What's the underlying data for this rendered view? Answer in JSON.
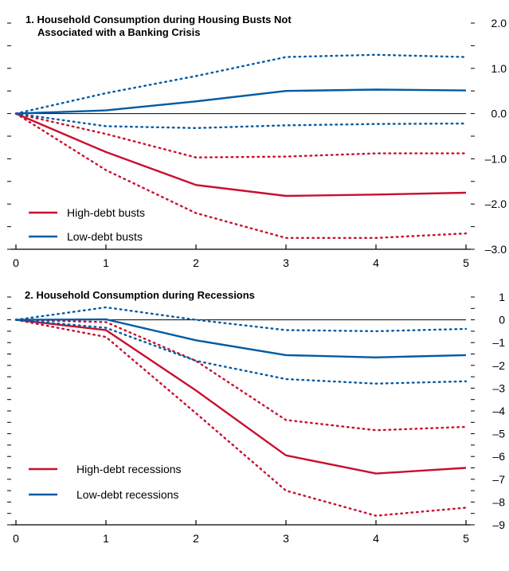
{
  "colors": {
    "high": "#c8102e",
    "low": "#005ba6",
    "axis": "#000000",
    "zero": "#000000"
  },
  "chart_data": [
    {
      "type": "line",
      "title": "1. Household Consumption during Housing Busts Not",
      "subtitle": "Associated with a Banking Crisis",
      "x": [
        0,
        1,
        2,
        3,
        4,
        5
      ],
      "x_tick_labels": [
        "0",
        "1",
        "2",
        "3",
        "4",
        "5"
      ],
      "ylim": [
        -3.0,
        2.0
      ],
      "y_tick_labels": [
        "2.0",
        "1.0",
        "0.0",
        "–1.0",
        "–2.0",
        "–3.0"
      ],
      "y_tick_values": [
        2.0,
        1.0,
        0.0,
        -1.0,
        -2.0,
        -3.0
      ],
      "legend": {
        "placement": "bottom-left",
        "high_label": "High-debt busts",
        "low_label": "Low-debt busts"
      },
      "series": [
        {
          "name": "High-debt busts",
          "color_key": "high",
          "style": "solid",
          "values": [
            0,
            -0.85,
            -1.58,
            -1.82,
            -1.79,
            -1.75
          ]
        },
        {
          "color_key": "high",
          "style": "dotted",
          "values": [
            0,
            -0.45,
            -0.97,
            -0.95,
            -0.88,
            -0.88
          ]
        },
        {
          "color_key": "high",
          "style": "dotted",
          "values": [
            0,
            -1.25,
            -2.2,
            -2.75,
            -2.75,
            -2.65
          ]
        },
        {
          "name": "Low-debt busts",
          "color_key": "low",
          "style": "solid",
          "values": [
            0,
            0.07,
            0.27,
            0.5,
            0.53,
            0.51
          ]
        },
        {
          "color_key": "low",
          "style": "dotted",
          "values": [
            0,
            0.45,
            0.83,
            1.25,
            1.3,
            1.25
          ]
        },
        {
          "color_key": "low",
          "style": "dotted",
          "values": [
            0,
            -0.28,
            -0.32,
            -0.26,
            -0.23,
            -0.22
          ]
        }
      ]
    },
    {
      "type": "line",
      "title": "2. Household Consumption during Recessions",
      "subtitle": "",
      "x": [
        0,
        1,
        2,
        3,
        4,
        5
      ],
      "x_tick_labels": [
        "0",
        "1",
        "2",
        "3",
        "4",
        "5"
      ],
      "ylim": [
        -9,
        1
      ],
      "y_tick_labels": [
        "1",
        "0",
        "–1",
        "–2",
        "–3",
        "–4",
        "–5",
        "–6",
        "–7",
        "–8",
        "–9"
      ],
      "y_tick_values": [
        1,
        0,
        -1,
        -2,
        -3,
        -4,
        -5,
        -6,
        -7,
        -8,
        -9
      ],
      "legend": {
        "placement": "bottom-left",
        "high_label": "High-debt recessions",
        "low_label": "Low-debt recessions"
      },
      "series": [
        {
          "name": "High-debt recessions",
          "color_key": "high",
          "style": "solid",
          "values": [
            0,
            -0.45,
            -3.1,
            -5.95,
            -6.75,
            -6.5
          ]
        },
        {
          "color_key": "high",
          "style": "dotted",
          "values": [
            0,
            -0.1,
            -1.8,
            -4.4,
            -4.85,
            -4.7
          ]
        },
        {
          "color_key": "high",
          "style": "dotted",
          "values": [
            0,
            -0.75,
            -4.1,
            -7.5,
            -8.6,
            -8.25
          ]
        },
        {
          "name": "Low-debt recessions",
          "color_key": "low",
          "style": "solid",
          "values": [
            0,
            0.02,
            -0.9,
            -1.55,
            -1.65,
            -1.55
          ]
        },
        {
          "color_key": "low",
          "style": "dotted",
          "values": [
            0,
            0.55,
            0.0,
            -0.45,
            -0.5,
            -0.4
          ]
        },
        {
          "color_key": "low",
          "style": "dotted",
          "values": [
            0,
            -0.35,
            -1.8,
            -2.6,
            -2.8,
            -2.7
          ]
        }
      ]
    }
  ]
}
